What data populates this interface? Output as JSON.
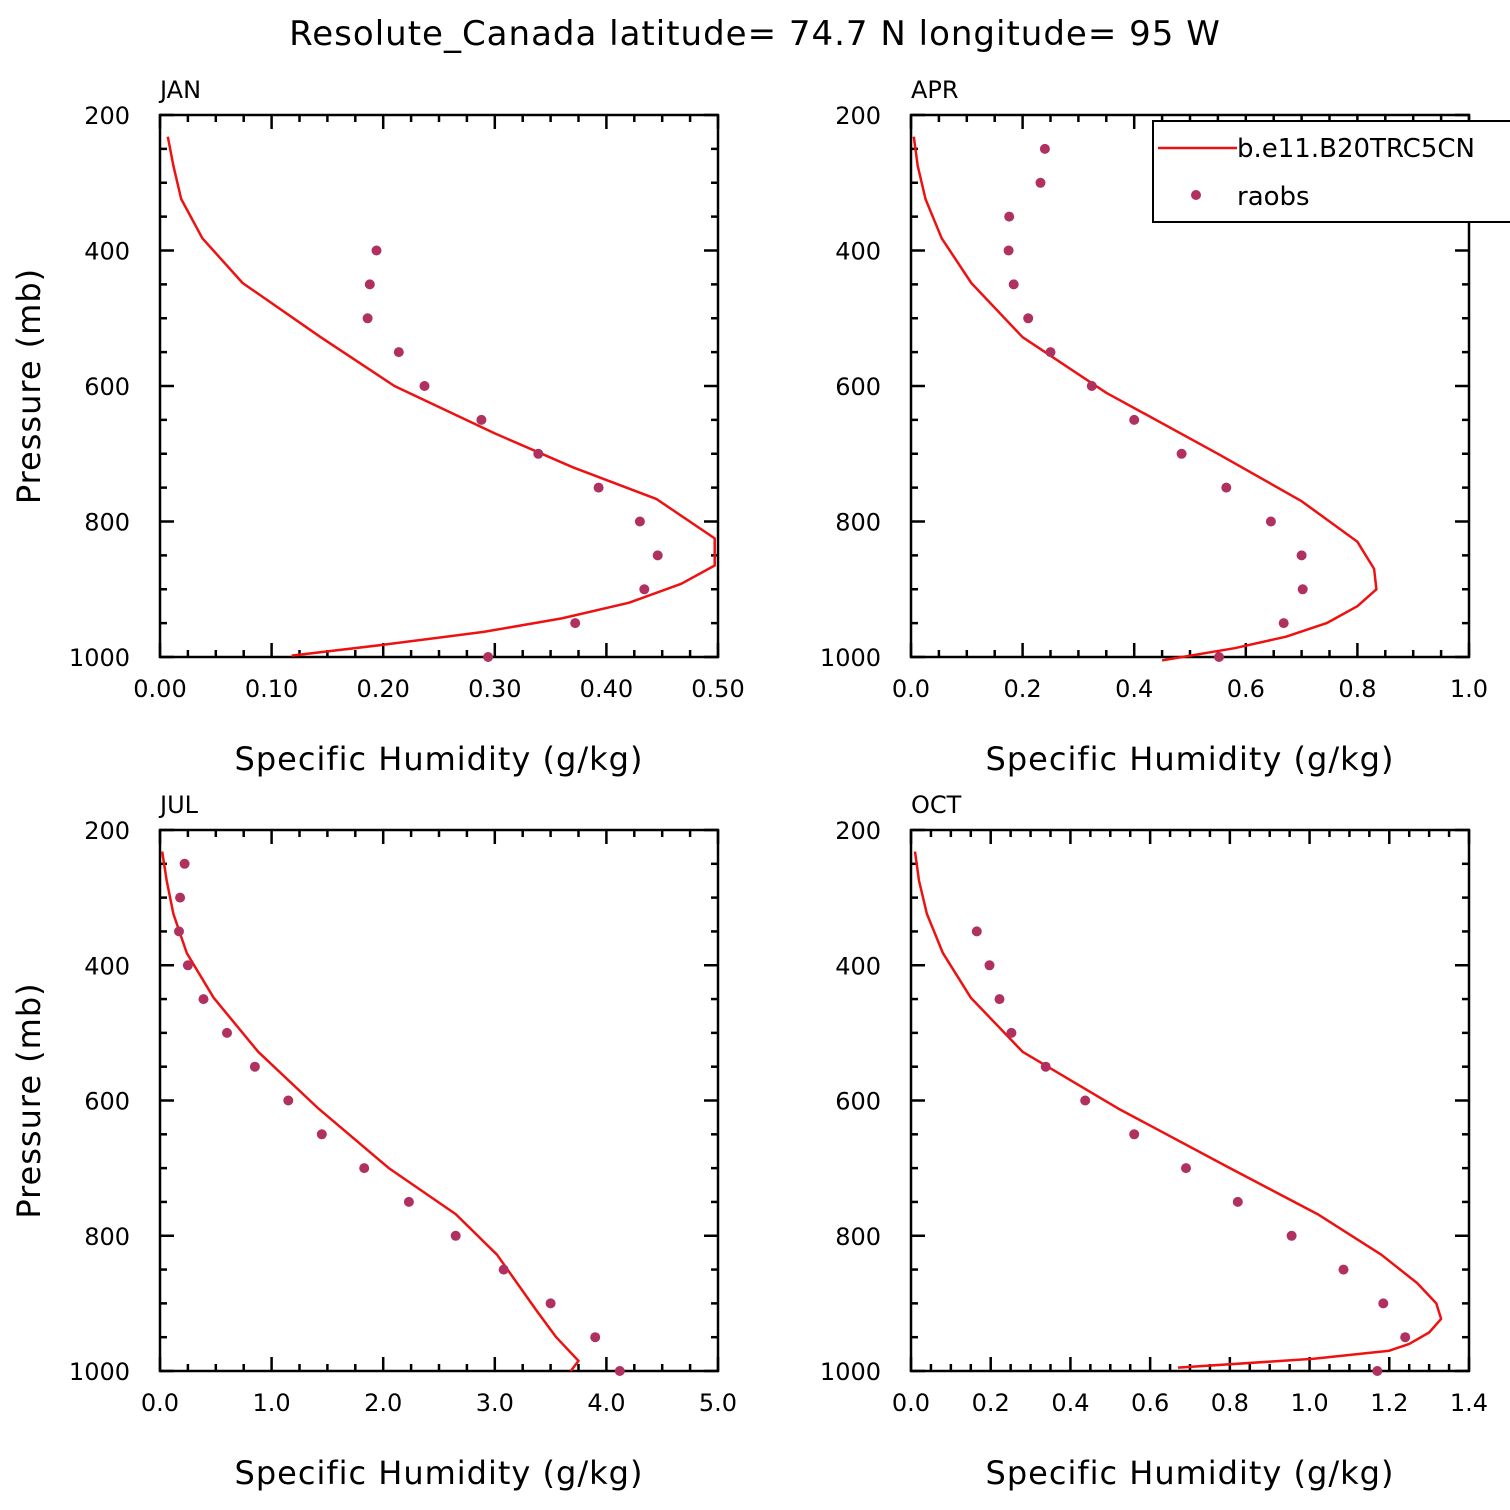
{
  "chart_data": {
    "type": "line",
    "title": "Resolute_Canada  latitude= 74.7 N longitude= 95 W",
    "legend": {
      "location": "top-right of APR panel",
      "entries": [
        {
          "label": "b.e11.B20TRC5CN",
          "style": "line",
          "color": "#ee1111"
        },
        {
          "label": "raobs",
          "style": "marker",
          "color": "#b03060"
        }
      ]
    },
    "panels": [
      {
        "name": "JAN",
        "xlabel": "Specific Humidity (g/kg)",
        "ylabel": "Pressure (mb)",
        "xlim": [
          0,
          0.5
        ],
        "ylim": [
          200,
          1000
        ],
        "y_reversed": true,
        "xticks": [
          "0.00",
          "0.10",
          "0.20",
          "0.30",
          "0.40",
          "0.50"
        ],
        "xtick_values": [
          0,
          0.1,
          0.2,
          0.3,
          0.4,
          0.5
        ],
        "yticks": [
          "200",
          "400",
          "600",
          "800",
          "1000"
        ],
        "ytick_values": [
          200,
          400,
          600,
          800,
          1000
        ],
        "series": [
          {
            "name": "b.e11.B20TRC5CN",
            "x": [
              0.007,
              0.012,
              0.019,
              0.038,
              0.074,
              0.144,
              0.21,
              0.3,
              0.37,
              0.445,
              0.497,
              0.497,
              0.467,
              0.42,
              0.36,
              0.29,
              0.2,
              0.118
            ],
            "y": [
              232,
              275,
              324,
              382,
              448,
              528,
              600,
              670,
              720,
              767,
              825,
              865,
              892,
              920,
              943,
              963,
              982,
              998
            ]
          },
          {
            "name": "raobs",
            "x": [
              0.194,
              0.188,
              0.186,
              0.214,
              0.237,
              0.288,
              0.339,
              0.393,
              0.43,
              0.446,
              0.434,
              0.372,
              0.294
            ],
            "y": [
              400,
              450,
              500,
              550,
              600,
              650,
              700,
              750,
              800,
              850,
              900,
              950,
              1000
            ]
          }
        ]
      },
      {
        "name": "APR",
        "xlabel": "Specific Humidity (g/kg)",
        "ylabel": "",
        "xlim": [
          0,
          1.0
        ],
        "ylim": [
          200,
          1000
        ],
        "y_reversed": true,
        "xticks": [
          "0.0",
          "0.2",
          "0.4",
          "0.6",
          "0.8",
          "1.0"
        ],
        "xtick_values": [
          0,
          0.2,
          0.4,
          0.6,
          0.8,
          1.0
        ],
        "yticks": [
          "200",
          "400",
          "600",
          "800",
          "1000"
        ],
        "ytick_values": [
          200,
          400,
          600,
          800,
          1000
        ],
        "series": [
          {
            "name": "b.e11.B20TRC5CN",
            "x": [
              0.005,
              0.012,
              0.026,
              0.055,
              0.108,
              0.2,
              0.35,
              0.55,
              0.7,
              0.8,
              0.83,
              0.834,
              0.8,
              0.745,
              0.672,
              0.58,
              0.45
            ],
            "y": [
              232,
              275,
              324,
              382,
              448,
              528,
              610,
              700,
              770,
              830,
              870,
              900,
              925,
              950,
              970,
              987,
              1005
            ]
          },
          {
            "name": "raobs",
            "x": [
              0.24,
              0.232,
              0.176,
              0.175,
              0.184,
              0.21,
              0.25,
              0.324,
              0.4,
              0.485,
              0.565,
              0.645,
              0.7,
              0.702,
              0.668,
              0.552
            ],
            "y": [
              250,
              300,
              350,
              400,
              450,
              500,
              550,
              600,
              650,
              700,
              750,
              800,
              850,
              900,
              950,
              1000
            ]
          }
        ]
      },
      {
        "name": "JUL",
        "xlabel": "Specific Humidity (g/kg)",
        "ylabel": "Pressure (mb)",
        "xlim": [
          0,
          5.0
        ],
        "ylim": [
          200,
          1000
        ],
        "y_reversed": true,
        "xticks": [
          "0.0",
          "1.0",
          "2.0",
          "3.0",
          "4.0",
          "5.0"
        ],
        "xtick_values": [
          0,
          1.0,
          2.0,
          3.0,
          4.0,
          5.0
        ],
        "yticks": [
          "200",
          "400",
          "600",
          "800",
          "1000"
        ],
        "ytick_values": [
          200,
          400,
          600,
          800,
          1000
        ],
        "series": [
          {
            "name": "b.e11.B20TRC5CN",
            "x": [
              0.02,
              0.06,
              0.12,
              0.24,
              0.48,
              0.88,
              1.42,
              2.05,
              2.65,
              3.02,
              3.2,
              3.38,
              3.55,
              3.75,
              3.68
            ],
            "y": [
              232,
              275,
              324,
              382,
              448,
              528,
              612,
              700,
              768,
              828,
              870,
              912,
              950,
              985,
              1000
            ]
          },
          {
            "name": "raobs",
            "x": [
              0.22,
              0.18,
              0.17,
              0.25,
              0.39,
              0.6,
              0.85,
              1.15,
              1.45,
              1.83,
              2.23,
              2.65,
              3.08,
              3.5,
              3.9,
              4.12
            ],
            "y": [
              250,
              300,
              350,
              400,
              450,
              500,
              550,
              600,
              650,
              700,
              750,
              800,
              850,
              900,
              950,
              1000
            ]
          }
        ]
      },
      {
        "name": "OCT",
        "xlabel": "Specific Humidity (g/kg)",
        "ylabel": "",
        "xlim": [
          0,
          1.4
        ],
        "ylim": [
          200,
          1000
        ],
        "y_reversed": true,
        "xticks": [
          "0.0",
          "0.2",
          "0.4",
          "0.6",
          "0.8",
          "1.0",
          "1.2",
          "1.4"
        ],
        "xtick_values": [
          0,
          0.2,
          0.4,
          0.6,
          0.8,
          1.0,
          1.2,
          1.4
        ],
        "yticks": [
          "200",
          "400",
          "600",
          "800",
          "1000"
        ],
        "ytick_values": [
          200,
          400,
          600,
          800,
          1000
        ],
        "series": [
          {
            "name": "b.e11.B20TRC5CN",
            "x": [
              0.01,
              0.02,
              0.04,
              0.08,
              0.15,
              0.28,
              0.52,
              0.8,
              1.02,
              1.18,
              1.27,
              1.318,
              1.33,
              1.3,
              1.25,
              1.2,
              1.01,
              0.67
            ],
            "y": [
              232,
              275,
              324,
              382,
              448,
              528,
              612,
              700,
              768,
              828,
              870,
              900,
              923,
              943,
              960,
              970,
              982,
              995
            ]
          },
          {
            "name": "raobs",
            "x": [
              0.165,
              0.197,
              0.222,
              0.252,
              0.338,
              0.437,
              0.56,
              0.69,
              0.82,
              0.955,
              1.085,
              1.185,
              1.24,
              1.17
            ],
            "y": [
              350,
              400,
              450,
              500,
              550,
              600,
              650,
              700,
              750,
              800,
              850,
              900,
              950,
              1000
            ]
          }
        ]
      }
    ]
  }
}
